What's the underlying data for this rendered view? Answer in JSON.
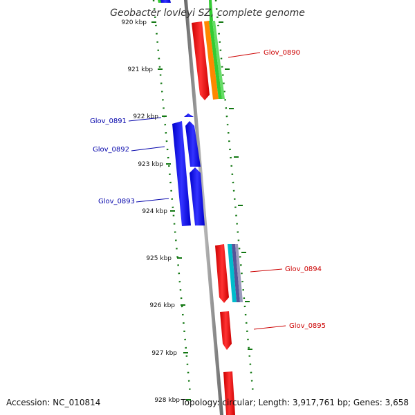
{
  "title": "Geobacter lovleyi SZ, complete genome",
  "accession": "Accession: NC_010814",
  "topology": "Topology: circular; Length: 3,917,761 bp; Genes: 3,658",
  "ticks": [
    "920 kbp",
    "921 kbp",
    "922 kbp",
    "923 kbp",
    "924 kbp",
    "925 kbp",
    "926 kbp",
    "927 kbp",
    "928 kbp"
  ],
  "colors": {
    "backbone": "#8a8a8a",
    "forward_label": "#cc0000",
    "reverse_label": "#0000aa",
    "tick_green": "#117711",
    "gene_red": "#ff0000",
    "gene_blue": "#0000ff",
    "gene_green": "#33cc33",
    "gene_orange": "#ff8800",
    "gene_cyan": "#00bbcc",
    "gene_purple": "#555599"
  },
  "genes": {
    "glov_0890": "Glov_0890",
    "glov_0891": "Glov_0891",
    "glov_0892": "Glov_0892",
    "glov_0893": "Glov_0893",
    "glov_0894": "Glov_0894",
    "glov_0895": "Glov_0895"
  }
}
